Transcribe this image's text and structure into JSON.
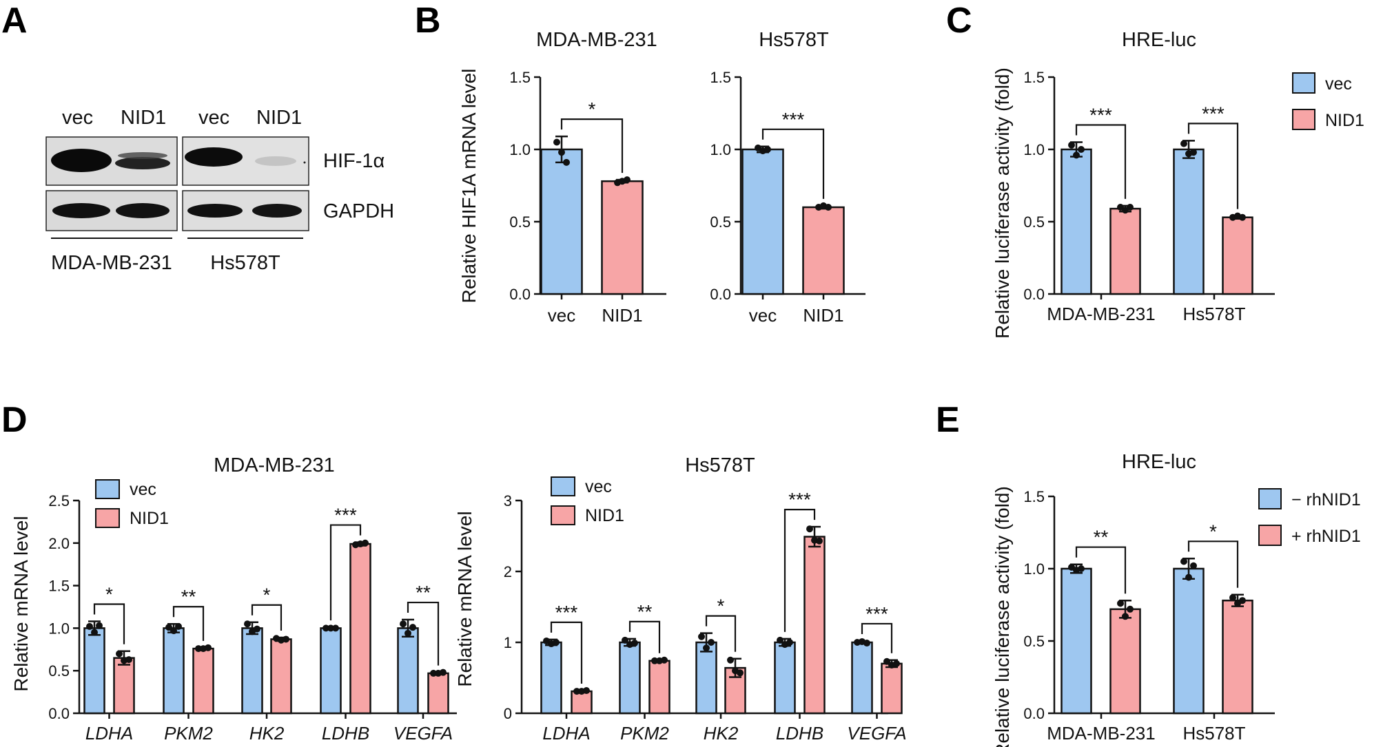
{
  "colors": {
    "vec": "#9ec7f0",
    "nid1": "#f7a5a6",
    "axis": "#111111"
  },
  "panel_letters": {
    "A": "A",
    "B": "B",
    "C": "C",
    "D": "D",
    "E": "E"
  },
  "western_blot": {
    "lane_labels": [
      "vec",
      "NID1",
      "vec",
      "NID1"
    ],
    "proteins": [
      "HIF-1α",
      "GAPDH"
    ],
    "cell_lines": [
      "MDA-MB-231",
      "Hs578T"
    ]
  },
  "chart_data": [
    {
      "id": "B1",
      "type": "bar",
      "title": "MDA-MB-231",
      "ylabel": "Relative HIF1A mRNA level",
      "ylim": [
        0,
        1.5
      ],
      "yticks": [
        "0.0",
        "0.5",
        "1.0",
        "1.5"
      ],
      "categories": [
        "vec",
        "NID1"
      ],
      "values": [
        1.0,
        0.78
      ],
      "errors": [
        0.09,
        0.01
      ],
      "points": [
        [
          1.05,
          0.98,
          0.91
        ],
        [
          0.77,
          0.78,
          0.79
        ]
      ],
      "significance": [
        {
          "group": 0,
          "label": "*"
        }
      ]
    },
    {
      "id": "B2",
      "type": "bar",
      "title": "Hs578T",
      "ylim": [
        0,
        1.5
      ],
      "yticks": [
        "0.0",
        "0.5",
        "1.0",
        "1.5"
      ],
      "categories": [
        "vec",
        "NID1"
      ],
      "values": [
        1.0,
        0.6
      ],
      "errors": [
        0.02,
        0.01
      ],
      "points": [
        [
          1.01,
          0.99,
          1.0
        ],
        [
          0.6,
          0.61,
          0.6
        ]
      ],
      "significance": [
        {
          "group": 0,
          "label": "***"
        }
      ]
    },
    {
      "id": "C",
      "type": "bar",
      "title": "HRE-luc",
      "ylabel": "Relative luciferase activity (fold)",
      "ylim": [
        0,
        1.5
      ],
      "yticks": [
        "0.0",
        "0.5",
        "1.0",
        "1.5"
      ],
      "categories": [
        "MDA-MB-231",
        "Hs578T"
      ],
      "series": [
        {
          "name": "vec",
          "values": [
            1.0,
            1.0
          ],
          "errors": [
            0.05,
            0.06
          ],
          "points": [
            [
              1.03,
              0.96,
              1.0
            ],
            [
              1.04,
              0.97,
              0.98
            ]
          ]
        },
        {
          "name": "NID1",
          "values": [
            0.59,
            0.53
          ],
          "errors": [
            0.02,
            0.01
          ],
          "points": [
            [
              0.6,
              0.58,
              0.6
            ],
            [
              0.53,
              0.54,
              0.53
            ]
          ]
        }
      ],
      "legend": "top-right",
      "significance": [
        {
          "group": 0,
          "label": "***"
        },
        {
          "group": 1,
          "label": "***"
        }
      ]
    },
    {
      "id": "D1",
      "type": "bar",
      "title": "MDA-MB-231",
      "ylabel": "Relative mRNA level",
      "ylim": [
        0,
        2.5
      ],
      "yticks": [
        "0.0",
        "0.5",
        "1.0",
        "1.5",
        "2.0",
        "2.5"
      ],
      "categories": [
        "LDHA",
        "PKM2",
        "HK2",
        "LDHB",
        "VEGFA"
      ],
      "categories_italic": true,
      "series": [
        {
          "name": "vec",
          "values": [
            1.0,
            1.0,
            1.0,
            1.0,
            1.0
          ],
          "errors": [
            0.08,
            0.05,
            0.07,
            0.01,
            0.1
          ],
          "points": [
            [
              1.02,
              0.95,
              1.03
            ],
            [
              1.01,
              0.97,
              1.02
            ],
            [
              1.05,
              0.96,
              0.99
            ],
            [
              1.0,
              1.0,
              1.0
            ],
            [
              1.05,
              0.94,
              1.01
            ]
          ]
        },
        {
          "name": "NID1",
          "values": [
            0.65,
            0.76,
            0.87,
            1.99,
            0.47
          ],
          "errors": [
            0.08,
            0.01,
            0.02,
            0.02,
            0.01
          ],
          "points": [
            [
              0.7,
              0.62,
              0.63
            ],
            [
              0.76,
              0.76,
              0.77
            ],
            [
              0.88,
              0.86,
              0.87
            ],
            [
              1.98,
              1.99,
              2.0
            ],
            [
              0.47,
              0.47,
              0.48
            ]
          ]
        }
      ],
      "legend": "top-left",
      "significance": [
        {
          "group": 0,
          "label": "*"
        },
        {
          "group": 1,
          "label": "**"
        },
        {
          "group": 2,
          "label": "*"
        },
        {
          "group": 3,
          "label": "***"
        },
        {
          "group": 4,
          "label": "**"
        }
      ]
    },
    {
      "id": "D2",
      "type": "bar",
      "title": "Hs578T",
      "ylabel": "Relative mRNA level",
      "ylim": [
        0,
        3
      ],
      "yticks": [
        "0",
        "1",
        "2",
        "3"
      ],
      "categories": [
        "LDHA",
        "PKM2",
        "HK2",
        "LDHB",
        "VEGFA"
      ],
      "categories_italic": true,
      "series": [
        {
          "name": "vec",
          "values": [
            1.0,
            1.0,
            1.0,
            1.0,
            1.0
          ],
          "errors": [
            0.04,
            0.05,
            0.13,
            0.05,
            0.02
          ],
          "points": [
            [
              1.02,
              0.98,
              1.0
            ],
            [
              1.03,
              0.97,
              0.99
            ],
            [
              1.08,
              0.92,
              1.0
            ],
            [
              1.03,
              0.97,
              1.0
            ],
            [
              1.0,
              1.01,
              0.99
            ]
          ]
        },
        {
          "name": "NID1",
          "values": [
            0.31,
            0.74,
            0.64,
            2.49,
            0.7
          ],
          "errors": [
            0.01,
            0.01,
            0.13,
            0.14,
            0.05
          ],
          "points": [
            [
              0.31,
              0.31,
              0.32
            ],
            [
              0.74,
              0.74,
              0.75
            ],
            [
              0.75,
              0.6,
              0.57
            ],
            [
              2.6,
              2.44,
              2.43
            ],
            [
              0.73,
              0.68,
              0.7
            ]
          ]
        }
      ],
      "legend": "top-left",
      "significance": [
        {
          "group": 0,
          "label": "***"
        },
        {
          "group": 1,
          "label": "**"
        },
        {
          "group": 2,
          "label": "*"
        },
        {
          "group": 3,
          "label": "***"
        },
        {
          "group": 4,
          "label": "***"
        }
      ]
    },
    {
      "id": "E",
      "type": "bar",
      "title": "HRE-luc",
      "ylabel": "Relative luciferase activity (fold)",
      "ylim": [
        0,
        1.5
      ],
      "yticks": [
        "0.0",
        "0.5",
        "1.0",
        "1.5"
      ],
      "categories": [
        "MDA-MB-231",
        "Hs578T"
      ],
      "series": [
        {
          "name": "− rhNID1",
          "values": [
            1.0,
            1.0
          ],
          "errors": [
            0.03,
            0.07
          ],
          "points": [
            [
              1.01,
              0.99,
              1.0
            ],
            [
              1.05,
              0.94,
              1.02
            ]
          ]
        },
        {
          "name": "+ rhNID1",
          "values": [
            0.72,
            0.78
          ],
          "errors": [
            0.06,
            0.04
          ],
          "points": [
            [
              0.76,
              0.67,
              0.72
            ],
            [
              0.8,
              0.76,
              0.78
            ]
          ]
        }
      ],
      "legend": "top-right",
      "significance": [
        {
          "group": 0,
          "label": "**"
        },
        {
          "group": 1,
          "label": "*"
        }
      ]
    }
  ]
}
